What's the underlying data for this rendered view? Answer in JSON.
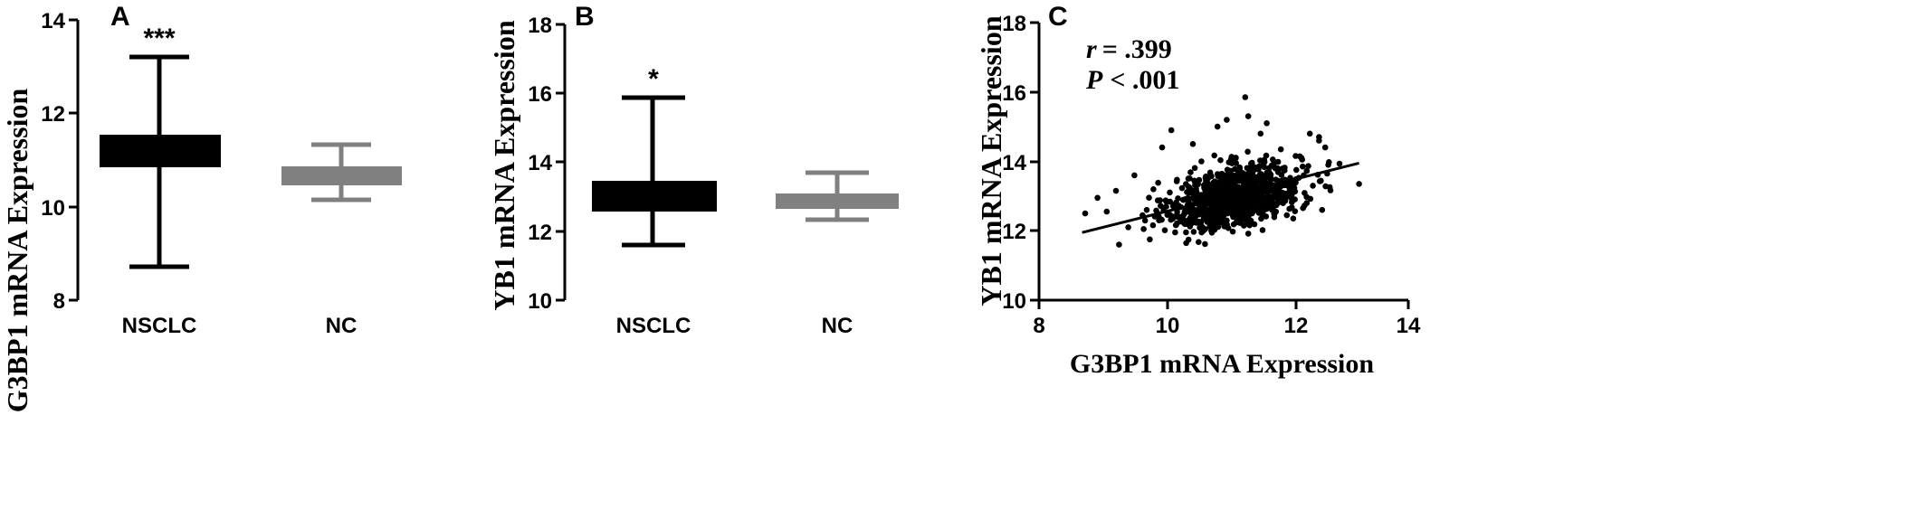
{
  "chart_data": [
    {
      "panel": "A",
      "type": "box",
      "ylabel": "G3BP1 mRNA Expression",
      "ylim": [
        8,
        14
      ],
      "yticks": [
        "8",
        "10",
        "12",
        "14"
      ],
      "categories": [
        "NSCLC",
        "NC"
      ],
      "boxes": [
        {
          "category": "NSCLC",
          "min": 8.7,
          "q1": 10.82,
          "median": 11.2,
          "q3": 11.52,
          "max": 13.2,
          "color": "#000000",
          "significance": "***"
        },
        {
          "category": "NC",
          "min": 10.13,
          "q1": 10.45,
          "median": 10.65,
          "q3": 10.85,
          "max": 11.32,
          "color": "#808080",
          "significance": ""
        }
      ]
    },
    {
      "panel": "B",
      "type": "box",
      "ylabel": "YB1 mRNA Expression",
      "ylim": [
        10,
        18
      ],
      "yticks": [
        "10",
        "12",
        "14",
        "16",
        "18"
      ],
      "categories": [
        "NSCLC",
        "NC"
      ],
      "boxes": [
        {
          "category": "NSCLC",
          "min": 11.6,
          "q1": 12.6,
          "median": 13.0,
          "q3": 13.45,
          "max": 15.85,
          "color": "#000000",
          "significance": "*"
        },
        {
          "category": "NC",
          "min": 12.35,
          "q1": 12.65,
          "median": 12.83,
          "q3": 13.02,
          "max": 13.7,
          "color": "#808080",
          "significance": ""
        }
      ]
    },
    {
      "panel": "C",
      "type": "scatter",
      "xlabel": "G3BP1 mRNA Expression",
      "ylabel": "YB1 mRNA Expression",
      "xlim": [
        8,
        14
      ],
      "ylim": [
        10,
        18
      ],
      "xticks": [
        "8",
        "10",
        "12",
        "14"
      ],
      "yticks": [
        "10",
        "12",
        "14",
        "16",
        "18"
      ],
      "annotation": {
        "r_label": "r",
        "r_value": "= .399",
        "p_label": "P",
        "p_value": "< .001"
      },
      "regression": {
        "x": [
          8.7,
          13.2
        ],
        "y": [
          11.95,
          13.95
        ]
      },
      "point_summary": {
        "n_points": 1000,
        "x_mean": 11.2,
        "x_sd": 0.55,
        "y_mean": 13.0,
        "y_sd": 0.55,
        "r": 0.399
      },
      "points": [
        [
          8.75,
          12.5
        ],
        [
          8.95,
          12.95
        ],
        [
          9.1,
          12.55
        ],
        [
          9.3,
          11.6
        ],
        [
          9.25,
          13.15
        ],
        [
          9.45,
          12.1
        ],
        [
          9.55,
          13.6
        ],
        [
          9.7,
          12.05
        ],
        [
          9.75,
          12.6
        ],
        [
          9.8,
          11.75
        ],
        [
          10.15,
          14.9
        ],
        [
          11.35,
          15.85
        ],
        [
          11.4,
          15.3
        ],
        [
          11.05,
          15.2
        ],
        [
          11.7,
          15.1
        ],
        [
          12.4,
          14.8
        ],
        [
          12.55,
          14.7
        ],
        [
          12.65,
          14.4
        ],
        [
          12.55,
          14.6
        ],
        [
          13.2,
          13.35
        ],
        [
          12.6,
          12.6
        ],
        [
          12.35,
          12.8
        ],
        [
          12.45,
          13.3
        ],
        [
          12.7,
          13.9
        ],
        [
          12.3,
          13.6
        ],
        [
          9.95,
          12.3
        ],
        [
          10.0,
          14.4
        ],
        [
          10.5,
          14.5
        ],
        [
          10.9,
          15.0
        ],
        [
          11.6,
          14.8
        ]
      ]
    }
  ]
}
